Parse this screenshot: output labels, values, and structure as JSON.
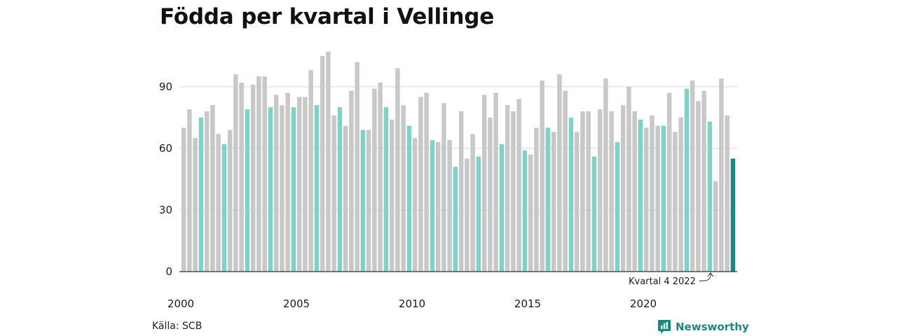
{
  "title": "Födda per kvartal i Vellinge",
  "source": "Källa: SCB",
  "brand": {
    "name": "Newsworthy",
    "icon": "bar-chart-speech-icon",
    "color": "#1a8a80"
  },
  "annotation": {
    "text": "Kvartal 4 2022",
    "target_index": 91
  },
  "colors": {
    "regular": "#c8c8c8",
    "q4": "#7dd3c8",
    "latest": "#1a8a80",
    "grid": "#d9d9d9",
    "axis": "#333333"
  },
  "chart_data": {
    "type": "bar",
    "title": "Födda per kvartal i Vellinge",
    "xlabel": "",
    "ylabel": "",
    "ylim": [
      0,
      108
    ],
    "yticks": [
      0,
      30,
      60,
      90
    ],
    "xticks": [
      "2000",
      "2005",
      "2010",
      "2015",
      "2020"
    ],
    "grid": true,
    "start_year": 2000,
    "values": [
      70,
      79,
      65,
      75,
      78,
      81,
      67,
      62,
      69,
      96,
      92,
      79,
      91,
      95,
      95,
      80,
      86,
      81,
      87,
      80,
      85,
      85,
      98,
      81,
      105,
      107,
      76,
      80,
      71,
      88,
      102,
      69,
      69,
      89,
      92,
      80,
      74,
      99,
      81,
      71,
      65,
      85,
      87,
      64,
      63,
      82,
      64,
      51,
      78,
      55,
      67,
      56,
      86,
      75,
      87,
      62,
      81,
      78,
      84,
      59,
      57,
      70,
      93,
      70,
      68,
      96,
      88,
      75,
      68,
      78,
      78,
      56,
      79,
      94,
      78,
      63,
      81,
      90,
      78,
      74,
      70,
      76,
      71,
      71,
      87,
      68,
      75,
      89,
      93,
      83,
      88,
      73,
      44,
      94,
      76,
      55
    ]
  }
}
